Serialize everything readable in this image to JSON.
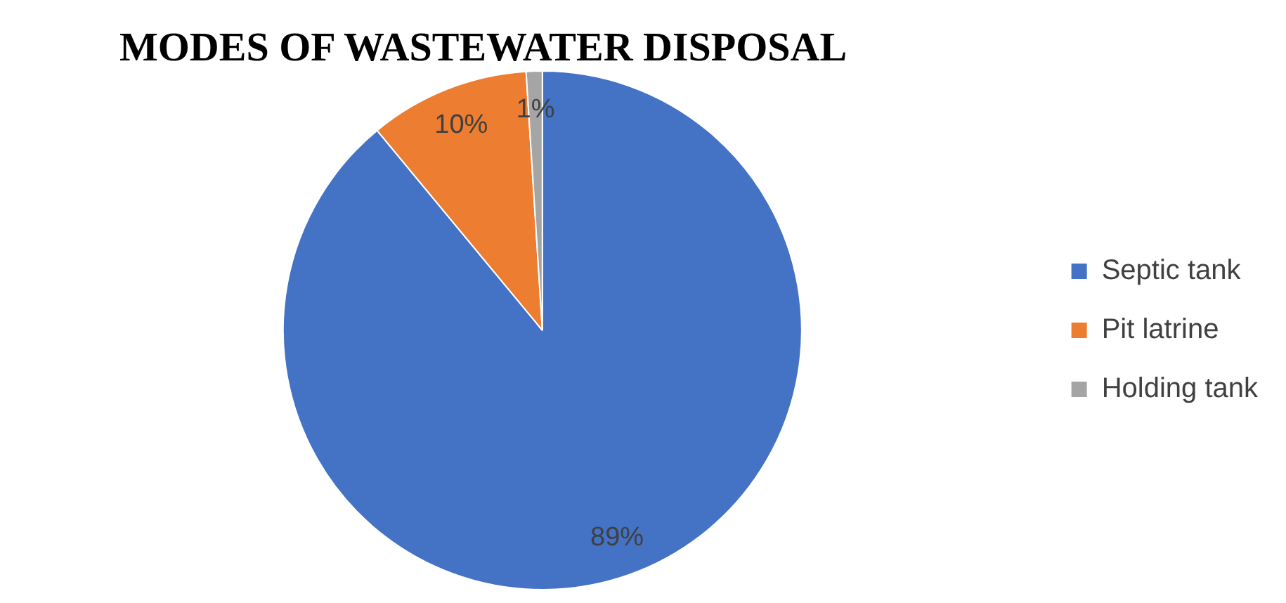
{
  "chart_data": {
    "type": "pie",
    "title": "MODES OF WASTEWATER DISPOSAL",
    "categories": [
      "Septic tank",
      "Pit latrine",
      "Holding tank"
    ],
    "values": [
      89,
      10,
      1
    ],
    "colors": [
      "#4472c4",
      "#ed7d31",
      "#a5a5a5"
    ],
    "value_labels": [
      "89%",
      "10%",
      "1%"
    ],
    "legend": "right"
  }
}
